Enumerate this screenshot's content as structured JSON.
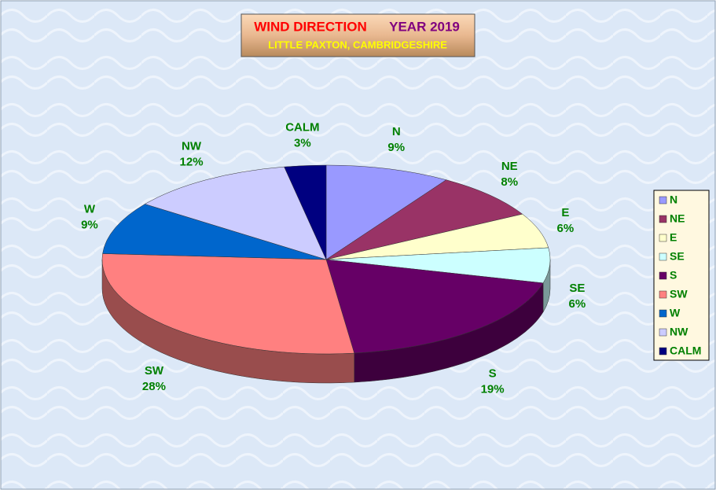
{
  "chart_data": {
    "type": "pie3d",
    "title_parts": [
      "WIND DIRECTION",
      "YEAR 2019"
    ],
    "subtitle": "LITTLE PAXTON, CAMBRIDGESHIRE",
    "categories": [
      "N",
      "NE",
      "E",
      "SE",
      "S",
      "SW",
      "W",
      "NW",
      "CALM"
    ],
    "values": [
      9,
      8,
      6,
      6,
      19,
      28,
      9,
      12,
      3
    ],
    "value_labels": [
      "9%",
      "8%",
      "6%",
      "6%",
      "19%",
      "28%",
      "9%",
      "12%",
      "3%"
    ],
    "colors": [
      "#9999ff",
      "#993366",
      "#ffffcc",
      "#ccffff",
      "#660066",
      "#ff8080",
      "#0066cc",
      "#ccccff",
      "#000080"
    ],
    "legend": "right"
  }
}
